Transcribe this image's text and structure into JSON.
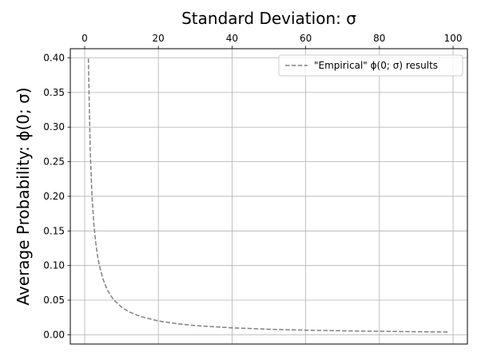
{
  "chart_data": {
    "type": "line",
    "title": "",
    "xlabel": "Standard Deviation: σ",
    "xlabel_position": "top",
    "ylabel": "Average Probability: ϕ(0; σ)",
    "xlim": [
      -3.9,
      103.9
    ],
    "ylim": [
      -0.0134,
      0.4133
    ],
    "x_ticks": [
      0,
      20,
      40,
      60,
      80,
      100
    ],
    "x_tick_labels": [
      "0",
      "20",
      "40",
      "60",
      "80",
      "100"
    ],
    "y_ticks": [
      0.0,
      0.05,
      0.1,
      0.15,
      0.2,
      0.25,
      0.3,
      0.35,
      0.4
    ],
    "y_tick_labels": [
      "0.00",
      "0.05",
      "0.10",
      "0.15",
      "0.20",
      "0.25",
      "0.30",
      "0.35",
      "0.40"
    ],
    "grid": true,
    "legend_position": "upper right",
    "series": [
      {
        "name": "\"Empirical\" ϕ(0; σ) results",
        "color": "#808080",
        "linestyle": "dashed",
        "x": [
          1,
          1.5,
          2,
          2.5,
          3,
          3.5,
          4,
          5,
          6,
          7,
          8,
          10,
          12,
          15,
          20,
          25,
          30,
          40,
          50,
          60,
          70,
          80,
          90,
          99
        ],
        "y": [
          0.399,
          0.266,
          0.1995,
          0.1596,
          0.133,
          0.114,
          0.0997,
          0.0798,
          0.0665,
          0.057,
          0.0499,
          0.0399,
          0.0332,
          0.0266,
          0.0199,
          0.016,
          0.0133,
          0.01,
          0.008,
          0.0066,
          0.0057,
          0.005,
          0.0044,
          0.004
        ]
      }
    ]
  }
}
